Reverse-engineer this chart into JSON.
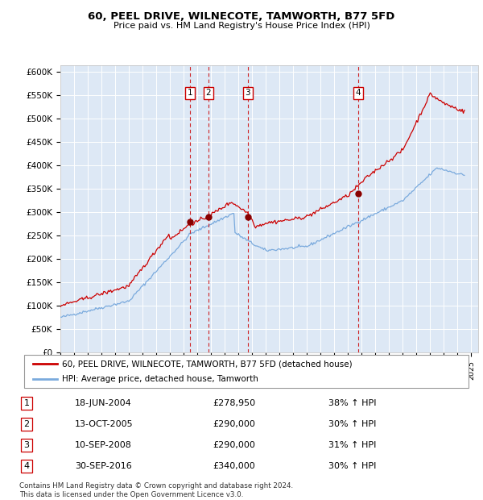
{
  "title": "60, PEEL DRIVE, WILNECOTE, TAMWORTH, B77 5FD",
  "subtitle": "Price paid vs. HM Land Registry's House Price Index (HPI)",
  "ylabel_ticks": [
    "£0",
    "£50K",
    "£100K",
    "£150K",
    "£200K",
    "£250K",
    "£300K",
    "£350K",
    "£400K",
    "£450K",
    "£500K",
    "£550K",
    "£600K"
  ],
  "ytick_values": [
    0,
    50000,
    100000,
    150000,
    200000,
    250000,
    300000,
    350000,
    400000,
    450000,
    500000,
    550000,
    600000
  ],
  "xlim_start": 1995.0,
  "xlim_end": 2025.5,
  "ylim": [
    0,
    615000
  ],
  "hpi_color": "#7aaadd",
  "price_color": "#cc0000",
  "bg_color": "#dde8f5",
  "legend_label_price": "60, PEEL DRIVE, WILNECOTE, TAMWORTH, B77 5FD (detached house)",
  "legend_label_hpi": "HPI: Average price, detached house, Tamworth",
  "transactions": [
    {
      "num": 1,
      "date": "18-JUN-2004",
      "price": 278950,
      "pct": "38%",
      "x": 2004.46
    },
    {
      "num": 2,
      "date": "13-OCT-2005",
      "price": 290000,
      "pct": "30%",
      "x": 2005.79
    },
    {
      "num": 3,
      "date": "10-SEP-2008",
      "price": 290000,
      "pct": "31%",
      "x": 2008.69
    },
    {
      "num": 4,
      "date": "30-SEP-2016",
      "price": 340000,
      "pct": "30%",
      "x": 2016.75
    }
  ],
  "footnote": "Contains HM Land Registry data © Crown copyright and database right 2024.\nThis data is licensed under the Open Government Licence v3.0."
}
